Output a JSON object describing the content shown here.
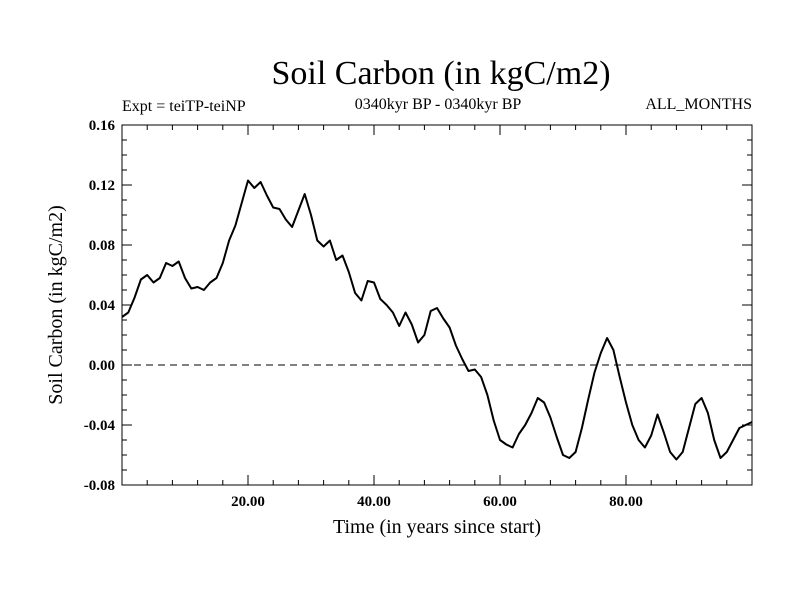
{
  "chart_data": {
    "type": "line",
    "title": "Soil Carbon (in kgC/m2)",
    "subtitle_left": "Expt = teiTP-teiNP",
    "subtitle_center": "0340kyr BP - 0340kyr BP",
    "subtitle_right": "ALL_MONTHS",
    "xlabel": "Time (in years since start)",
    "ylabel": "Soil Carbon (in kgC/m2)",
    "xlim": [
      0,
      100
    ],
    "ylim": [
      -0.08,
      0.16
    ],
    "x_ticks": [
      20,
      40,
      60,
      80
    ],
    "x_tick_labels": [
      "20.00",
      "40.00",
      "60.00",
      "80.00"
    ],
    "y_ticks": [
      -0.08,
      -0.04,
      0.0,
      0.04,
      0.08,
      0.12,
      0.16
    ],
    "y_tick_labels": [
      "-0.08",
      "-0.04",
      "0.00",
      "0.04",
      "0.08",
      "0.12",
      "0.16"
    ],
    "zero_line": 0.0,
    "grid": false,
    "series": [
      {
        "name": "teiTP-teiNP",
        "color": "#000000",
        "x": [
          0,
          1,
          2,
          3,
          4,
          5,
          6,
          7,
          8,
          9,
          10,
          11,
          12,
          13,
          14,
          15,
          16,
          17,
          18,
          19,
          20,
          21,
          22,
          23,
          24,
          25,
          26,
          27,
          28,
          29,
          30,
          31,
          32,
          33,
          34,
          35,
          36,
          37,
          38,
          39,
          40,
          41,
          42,
          43,
          44,
          45,
          46,
          47,
          48,
          49,
          50,
          51,
          52,
          53,
          54,
          55,
          56,
          57,
          58,
          59,
          60,
          61,
          62,
          63,
          64,
          65,
          66,
          67,
          68,
          69,
          70,
          71,
          72,
          73,
          74,
          75,
          76,
          77,
          78,
          79,
          80,
          81,
          82,
          83,
          84,
          85,
          86,
          87,
          88,
          89,
          90,
          91,
          92,
          93,
          94,
          95,
          96,
          97,
          98,
          99,
          100
        ],
        "values": [
          0.032,
          0.035,
          0.045,
          0.057,
          0.06,
          0.055,
          0.058,
          0.068,
          0.066,
          0.069,
          0.058,
          0.051,
          0.052,
          0.05,
          0.055,
          0.058,
          0.068,
          0.083,
          0.093,
          0.108,
          0.123,
          0.118,
          0.122,
          0.113,
          0.105,
          0.104,
          0.097,
          0.092,
          0.103,
          0.114,
          0.1,
          0.083,
          0.079,
          0.083,
          0.07,
          0.073,
          0.062,
          0.048,
          0.043,
          0.056,
          0.055,
          0.044,
          0.04,
          0.035,
          0.026,
          0.035,
          0.027,
          0.015,
          0.02,
          0.036,
          0.038,
          0.031,
          0.025,
          0.013,
          0.004,
          -0.004,
          -0.003,
          -0.008,
          -0.02,
          -0.037,
          -0.05,
          -0.053,
          -0.055,
          -0.046,
          -0.04,
          -0.032,
          -0.022,
          -0.025,
          -0.035,
          -0.048,
          -0.06,
          -0.062,
          -0.058,
          -0.042,
          -0.023,
          -0.005,
          0.008,
          0.018,
          0.01,
          -0.008,
          -0.025,
          -0.04,
          -0.05,
          -0.055,
          -0.047,
          -0.033,
          -0.045,
          -0.058,
          -0.063,
          -0.058,
          -0.042,
          -0.026,
          -0.022,
          -0.032,
          -0.05,
          -0.062,
          -0.058,
          -0.05,
          -0.042,
          -0.04,
          -0.038
        ]
      }
    ]
  }
}
